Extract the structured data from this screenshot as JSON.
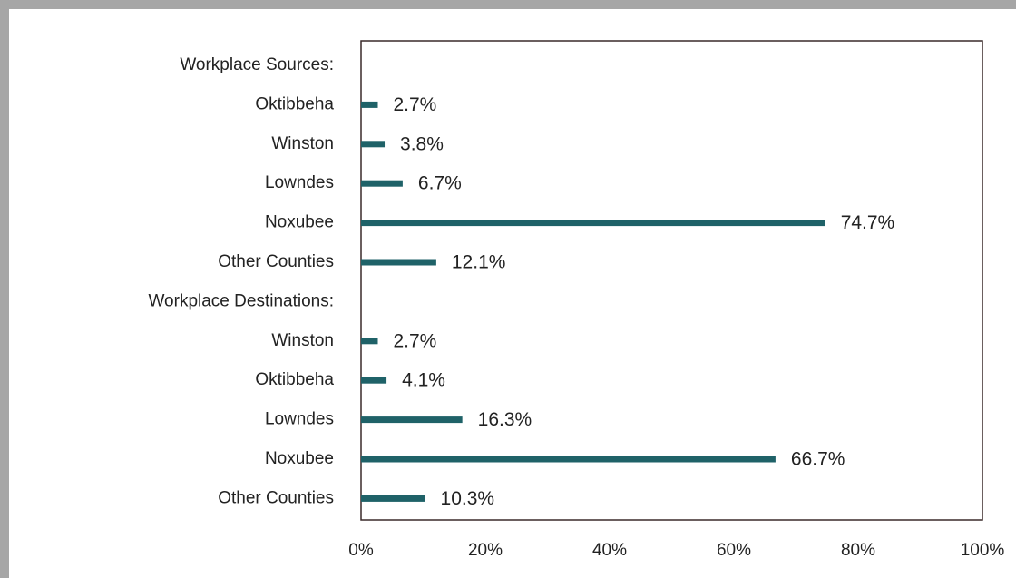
{
  "chart_data": {
    "type": "barh",
    "categories": [
      "Workplace Sources:",
      "Oktibbeha",
      "Winston",
      "Lowndes",
      "Noxubee",
      "Other Counties",
      "Workplace Destinations:",
      "Winston",
      "Oktibbeha",
      "Lowndes",
      "Noxubee",
      "Other Counties"
    ],
    "values": [
      null,
      2.7,
      3.8,
      6.7,
      74.7,
      12.1,
      null,
      2.7,
      4.1,
      16.3,
      66.7,
      10.3
    ],
    "value_labels": [
      null,
      "2.7%",
      "3.8%",
      "6.7%",
      "74.7%",
      "12.1%",
      null,
      "2.7%",
      "4.1%",
      "16.3%",
      "66.7%",
      "10.3%"
    ],
    "color": "#1f6268",
    "xlim": [
      0,
      100
    ],
    "xticks": [
      {
        "value": 0,
        "label": "0%"
      },
      {
        "value": 20,
        "label": "20%"
      },
      {
        "value": 40,
        "label": "40%"
      },
      {
        "value": 60,
        "label": "60%"
      },
      {
        "value": 80,
        "label": "80%"
      },
      {
        "value": 100,
        "label": "100%"
      }
    ]
  }
}
